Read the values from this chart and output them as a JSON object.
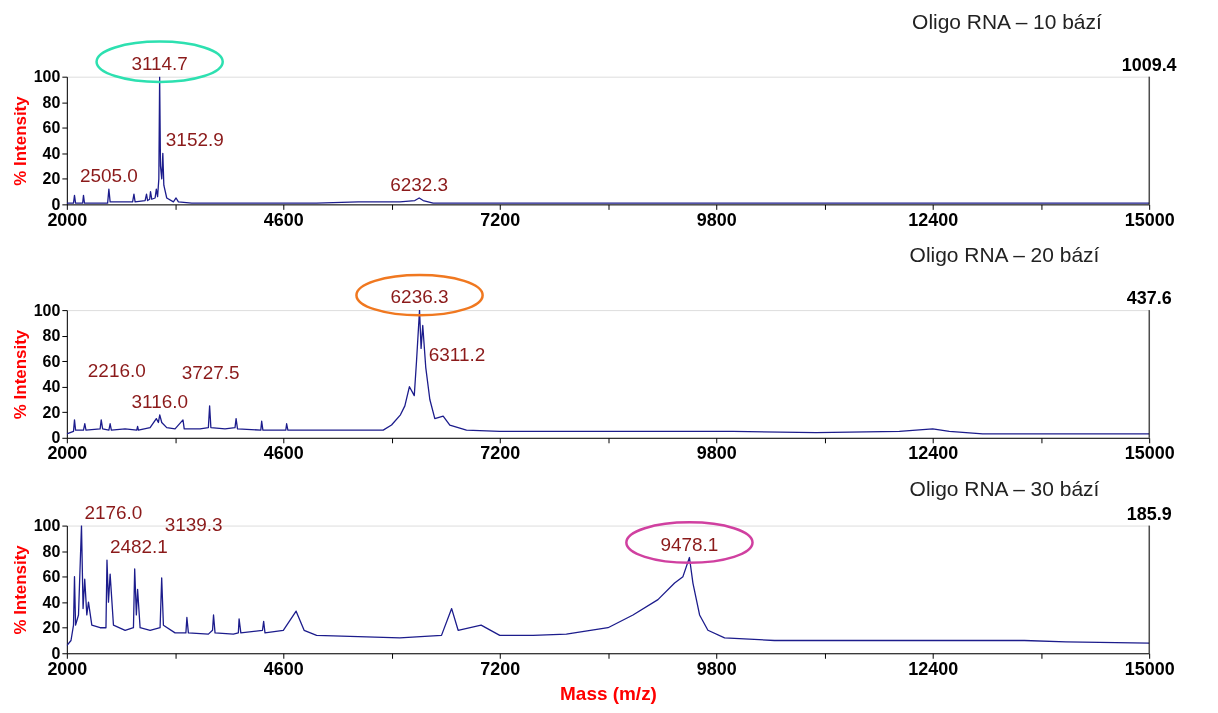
{
  "chart_data": [
    {
      "type": "line",
      "title": "Oligo RNA – 10 bází",
      "ylabel": "% Intensity",
      "x": [
        2000,
        2080,
        2092,
        2105,
        2190,
        2200,
        2212,
        2490,
        2505,
        2520,
        2790,
        2806,
        2820,
        2940,
        2957,
        2970,
        2995,
        3005,
        3020,
        3060,
        3075,
        3090,
        3105,
        3114.7,
        3125,
        3140,
        3152.9,
        3165,
        3200,
        3280,
        3312,
        3340,
        3500,
        4000,
        5000,
        5500,
        6000,
        6180,
        6232.3,
        6280,
        6400,
        8000,
        9000,
        10000,
        12000,
        13000,
        15000
      ],
      "series": [
        {
          "color": "#1c1c8c",
          "values": [
            1,
            1,
            7,
            1,
            1,
            7,
            1,
            1,
            12,
            2,
            2,
            8,
            2,
            3,
            8,
            3,
            4,
            10,
            4,
            5,
            12,
            6,
            20,
            100,
            30,
            20,
            40,
            15,
            5,
            2,
            5,
            2,
            1,
            1,
            1,
            2,
            2,
            3,
            5,
            3,
            1,
            1,
            1,
            1,
            1,
            1,
            1
          ]
        }
      ],
      "xlim": [
        2000,
        15000
      ],
      "xticks": [
        2000,
        {
          "value": 3300,
          "label": null
        },
        4600,
        {
          "value": 5900,
          "label": null
        },
        7200,
        {
          "value": 8500,
          "label": null
        },
        9800,
        {
          "value": 11100,
          "label": null
        },
        12400,
        {
          "value": 13700,
          "label": null
        },
        15000
      ],
      "ylim": [
        0,
        100
      ],
      "yticks": [
        0,
        20,
        40,
        60,
        80,
        100
      ],
      "annotations": [
        {
          "text": "3114.7",
          "x": 3114.7,
          "y": 100
        },
        {
          "text": "3152.9",
          "x": 3152.9,
          "y": 40
        },
        {
          "text": "2505.0",
          "x": 2505,
          "y": 12
        },
        {
          "text": "6232.3",
          "x": 6232.3,
          "y": 5
        },
        "1009.4"
      ]
    },
    {
      "type": "line",
      "title": "Oligo RNA – 20 bází",
      "ylabel": "% Intensity",
      "x": [
        2000,
        2080,
        2092,
        2105,
        2200,
        2216,
        2230,
        2400,
        2413,
        2430,
        2505,
        2520,
        2535,
        2700,
        2840,
        2850,
        2860,
        3000,
        3075,
        3100,
        3116,
        3140,
        3200,
        3300,
        3395,
        3410,
        3600,
        3700,
        3715,
        3730,
        3900,
        4020,
        4033,
        4050,
        4330,
        4340,
        4355,
        4630,
        4640,
        4655,
        5000,
        5400,
        5800,
        5900,
        6007,
        6060,
        6115,
        6173,
        6200,
        6236.3,
        6255,
        6275,
        6311.2,
        6360,
        6420,
        6520,
        6600,
        6800,
        7200,
        8000,
        9000,
        10000,
        11000,
        12000,
        12400,
        12600,
        13000,
        14000,
        15000
      ],
      "series": [
        {
          "color": "#1c1c8c",
          "values": [
            3,
            5,
            14,
            6,
            6,
            11,
            6,
            7,
            14,
            7,
            6,
            11,
            6,
            7,
            6,
            9,
            6,
            8,
            15,
            12,
            18,
            12,
            8,
            7,
            14,
            7,
            7,
            8,
            25,
            8,
            7,
            8,
            15,
            7,
            6,
            13,
            6,
            6,
            11,
            6,
            6,
            6,
            6,
            10,
            18,
            25,
            40,
            33,
            60,
            100,
            70,
            88,
            55,
            30,
            15,
            17,
            10,
            6,
            5,
            5,
            5,
            5,
            4,
            5,
            7,
            5,
            3,
            3,
            3
          ]
        }
      ],
      "xlim": [
        2000,
        15000
      ],
      "xticks": [
        2000,
        {
          "value": 3300,
          "label": null
        },
        4600,
        {
          "value": 5900,
          "label": null
        },
        7200,
        {
          "value": 8500,
          "label": null
        },
        9800,
        {
          "value": 11100,
          "label": null
        },
        12400,
        {
          "value": 13700,
          "label": null
        },
        15000
      ],
      "ylim": [
        0,
        100
      ],
      "yticks": [
        0,
        20,
        40,
        60,
        80,
        100
      ],
      "annotations": [
        {
          "text": "6236.3",
          "x": 6236.3,
          "y": 100
        },
        {
          "text": "6311.2",
          "x": 6311.2,
          "y": 55
        },
        {
          "text": "3116.0",
          "x": 3116,
          "y": 18
        },
        {
          "text": "2216.0",
          "x": 2216,
          "y": 11
        },
        {
          "text": "3727.5",
          "x": 3727.5,
          "y": 25
        },
        "437.6"
      ]
    },
    {
      "type": "line",
      "title": "Oligo RNA – 30 bází",
      "ylabel": "% Intensity",
      "xlabel": "Mass (m/z)",
      "x": [
        2000,
        2050,
        2080,
        2092,
        2105,
        2140,
        2176,
        2195,
        2215,
        2240,
        2260,
        2300,
        2400,
        2470,
        2482.1,
        2500,
        2520,
        2560,
        2700,
        2800,
        2815,
        2835,
        2850,
        2880,
        3000,
        3120,
        3139.3,
        3160,
        3300,
        3430,
        3442,
        3460,
        3700,
        3750,
        3762,
        3780,
        4000,
        4060,
        4069,
        4090,
        4350,
        4364,
        4380,
        4600,
        4754,
        4850,
        5000,
        5500,
        6000,
        6500,
        6622,
        6700,
        6976,
        7200,
        7600,
        8000,
        8500,
        8800,
        9100,
        9300,
        9400,
        9478.1,
        9520,
        9600,
        9700,
        9900,
        10500,
        11000,
        12000,
        13000,
        13500,
        14000,
        15000
      ],
      "series": [
        {
          "color": "#1c1c8c",
          "values": [
            6,
            10,
            22,
            60,
            22,
            30,
            100,
            35,
            58,
            30,
            40,
            22,
            20,
            20,
            73,
            40,
            62,
            22,
            18,
            20,
            66,
            30,
            50,
            20,
            18,
            20,
            59,
            22,
            16,
            16,
            28,
            16,
            15,
            18,
            30,
            16,
            15,
            16,
            27,
            16,
            18,
            25,
            16,
            18,
            33,
            18,
            14,
            13,
            12,
            14,
            35,
            18,
            22,
            14,
            14,
            15,
            20,
            30,
            42,
            55,
            60,
            75,
            55,
            30,
            18,
            12,
            10,
            10,
            10,
            10,
            10,
            9,
            8
          ]
        }
      ],
      "xlim": [
        2000,
        15000
      ],
      "xticks": [
        2000,
        {
          "value": 3300,
          "label": null
        },
        4600,
        {
          "value": 5900,
          "label": null
        },
        7200,
        {
          "value": 8500,
          "label": null
        },
        9800,
        {
          "value": 11100,
          "label": null
        },
        12400,
        {
          "value": 13700,
          "label": null
        },
        15000
      ],
      "ylim": [
        0,
        100
      ],
      "yticks": [
        0,
        20,
        40,
        60,
        80,
        100
      ],
      "annotations": [
        {
          "text": "9478.1",
          "x": 9478.1,
          "y": 75
        },
        {
          "text": "2176.0",
          "x": 2176,
          "y": 100
        },
        {
          "text": "2482.1",
          "x": 2482.1,
          "y": 73
        },
        {
          "text": "3139.3",
          "x": 3139.3,
          "y": 59
        },
        "185.9"
      ]
    }
  ]
}
